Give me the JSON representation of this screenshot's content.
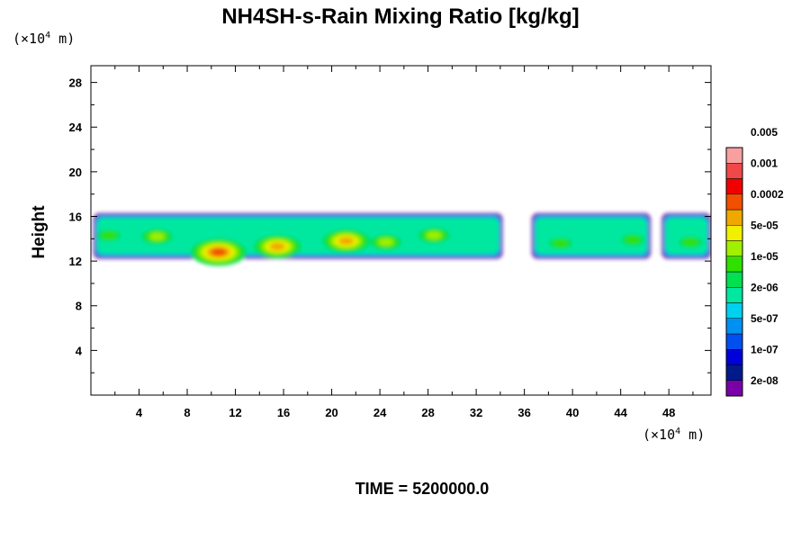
{
  "chart_data": {
    "type": "heatmap",
    "title": "NH4SH-s-Rain Mixing Ratio [kg/kg]",
    "ylabel": "Height",
    "xunit_text": "(×10",
    "xunit_exp": "4",
    "xunit_tail": " m)",
    "yunit_text": "(×10",
    "yunit_exp": "4",
    "yunit_tail": " m)",
    "footer": "TIME = 5200000.0",
    "xlim": [
      0,
      51.5
    ],
    "ylim": [
      0,
      29.5
    ],
    "xticks": [
      "4",
      "8",
      "12",
      "16",
      "20",
      "24",
      "28",
      "32",
      "36",
      "40",
      "44",
      "48"
    ],
    "yticks": [
      "4",
      "8",
      "12",
      "16",
      "20",
      "24",
      "28"
    ],
    "colorbar": {
      "colors": [
        "#7a00a8",
        "#001a8c",
        "#0000d8",
        "#0050f0",
        "#0090f0",
        "#00d0f0",
        "#00e8a0",
        "#00e050",
        "#30e000",
        "#a0f000",
        "#f0f000",
        "#f0a800",
        "#f05000",
        "#f00000",
        "#f04848",
        "#f8a0a0"
      ],
      "labels": [
        "2e-08",
        "1e-07",
        "5e-07",
        "2e-06",
        "1e-05",
        "5e-05",
        "0.0002",
        "0.001",
        "0.005"
      ]
    },
    "cloud_layer": {
      "bottom_height": 12.2,
      "top_height": 16.3,
      "segments": [
        {
          "x0": 0.2,
          "x1": 34.2
        },
        {
          "x0": 36.6,
          "x1": 46.5
        },
        {
          "x0": 47.4,
          "x1": 51.5
        }
      ],
      "maxima": [
        {
          "x": 10.6,
          "y": 12.8,
          "level": 12
        },
        {
          "x": 15.5,
          "y": 13.3,
          "level": 11
        },
        {
          "x": 21.2,
          "y": 13.8,
          "level": 11
        },
        {
          "x": 5.5,
          "y": 14.2,
          "level": 9
        },
        {
          "x": 1.5,
          "y": 14.3,
          "level": 8
        },
        {
          "x": 24.5,
          "y": 13.7,
          "level": 9
        },
        {
          "x": 28.5,
          "y": 14.3,
          "level": 9
        },
        {
          "x": 39.0,
          "y": 13.6,
          "level": 8
        },
        {
          "x": 45.0,
          "y": 13.9,
          "level": 8
        },
        {
          "x": 49.8,
          "y": 13.7,
          "level": 8
        }
      ]
    }
  }
}
